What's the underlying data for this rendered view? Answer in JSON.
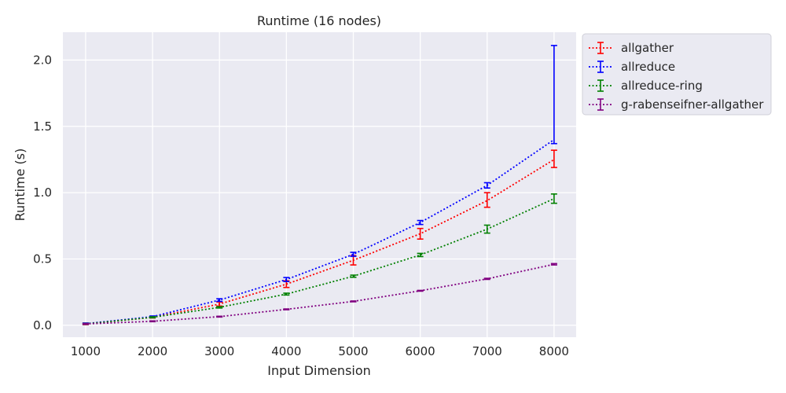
{
  "chart_data": {
    "type": "line",
    "title": "Runtime (16 nodes)",
    "xlabel": "Input Dimension",
    "ylabel": "Runtime (s)",
    "x": [
      1000,
      2000,
      3000,
      4000,
      5000,
      6000,
      7000,
      8000
    ],
    "xticks": [
      "1000",
      "2000",
      "3000",
      "4000",
      "5000",
      "6000",
      "7000",
      "8000"
    ],
    "yticks": [
      "0.0",
      "0.5",
      "1.0",
      "1.5",
      "2.0"
    ],
    "xlim": [
      660,
      8330
    ],
    "ylim": [
      -0.09,
      2.21
    ],
    "grid": true,
    "legend_position": "outside-top-right",
    "series": [
      {
        "name": "allgather",
        "color": "#ff0000",
        "values": [
          0.01,
          0.06,
          0.16,
          0.31,
          0.49,
          0.69,
          0.94,
          1.25
        ],
        "err_low": [
          0.005,
          0.005,
          0.015,
          0.025,
          0.035,
          0.04,
          0.05,
          0.06
        ],
        "err_high": [
          0.005,
          0.005,
          0.015,
          0.025,
          0.035,
          0.04,
          0.06,
          0.07
        ]
      },
      {
        "name": "allreduce",
        "color": "#0000ff",
        "values": [
          0.012,
          0.065,
          0.19,
          0.345,
          0.535,
          0.775,
          1.055,
          1.4
        ],
        "err_low": [
          0.005,
          0.005,
          0.01,
          0.015,
          0.015,
          0.015,
          0.02,
          0.03
        ],
        "err_high": [
          0.005,
          0.005,
          0.01,
          0.015,
          0.015,
          0.015,
          0.02,
          0.71
        ]
      },
      {
        "name": "allreduce-ring",
        "color": "#008000",
        "values": [
          0.01,
          0.06,
          0.135,
          0.235,
          0.37,
          0.53,
          0.725,
          0.955
        ],
        "err_low": [
          0.004,
          0.004,
          0.005,
          0.007,
          0.008,
          0.012,
          0.03,
          0.035
        ],
        "err_high": [
          0.004,
          0.004,
          0.005,
          0.007,
          0.008,
          0.012,
          0.03,
          0.035
        ]
      },
      {
        "name": "g-rabenseifner-allgather",
        "color": "#800080",
        "values": [
          0.01,
          0.03,
          0.065,
          0.12,
          0.18,
          0.26,
          0.35,
          0.46
        ],
        "err_low": [
          0.003,
          0.003,
          0.003,
          0.003,
          0.003,
          0.003,
          0.004,
          0.005
        ],
        "err_high": [
          0.003,
          0.003,
          0.003,
          0.003,
          0.003,
          0.003,
          0.004,
          0.005
        ]
      }
    ]
  }
}
